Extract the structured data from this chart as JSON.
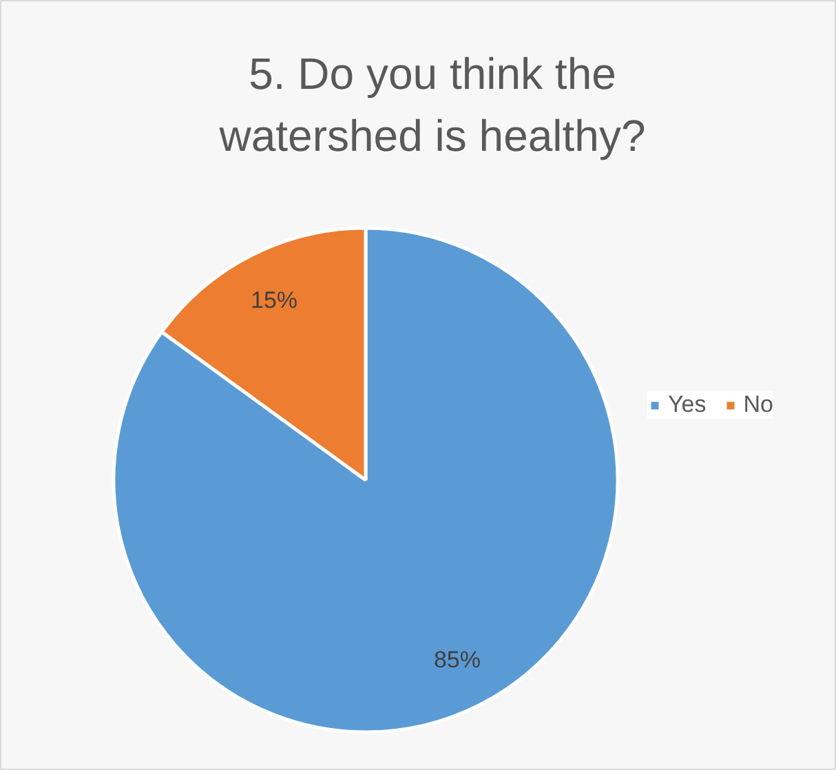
{
  "chart_data": {
    "type": "pie",
    "title": "5. Do you think the watershed is healthy?",
    "categories": [
      "Yes",
      "No"
    ],
    "values": [
      85,
      15
    ],
    "colors": [
      "#5b9bd5",
      "#ed7d31"
    ],
    "value_labels": [
      "85%",
      "15%"
    ],
    "legend": "right"
  }
}
